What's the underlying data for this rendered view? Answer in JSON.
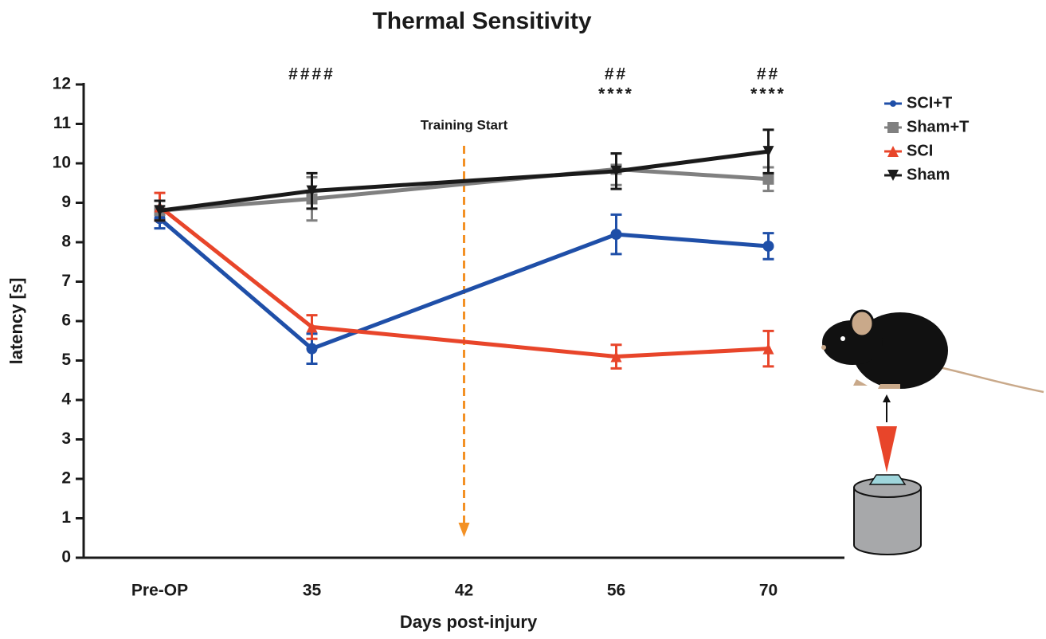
{
  "chart_data": {
    "type": "line",
    "title": "Thermal Sensitivity",
    "x_label": "Days post-injury",
    "y_label": "latency [s]",
    "categories": [
      "Pre-OP",
      "35",
      "42",
      "56",
      "70"
    ],
    "ylim": [
      0,
      12
    ],
    "yticks": [
      0,
      1,
      2,
      3,
      4,
      5,
      6,
      7,
      8,
      9,
      10,
      11,
      12
    ],
    "legend": "top-right",
    "series": [
      {
        "name": "SCI+T",
        "color": "#1f4fa8",
        "marker": "circle",
        "x": [
          "Pre-OP",
          "35",
          "56",
          "70"
        ],
        "values": [
          8.6,
          5.3,
          8.2,
          7.9
        ],
        "error": [
          0.25,
          0.38,
          0.5,
          0.33
        ]
      },
      {
        "name": "Sham+T",
        "color": "#808080",
        "marker": "square",
        "x": [
          "Pre-OP",
          "35",
          "56",
          "70"
        ],
        "values": [
          8.8,
          9.1,
          9.85,
          9.6
        ],
        "error": [
          0.25,
          0.55,
          0.4,
          0.3
        ]
      },
      {
        "name": "SCI",
        "color": "#e8452a",
        "marker": "triangle-up",
        "x": [
          "Pre-OP",
          "35",
          "56",
          "70"
        ],
        "values": [
          8.9,
          5.85,
          5.1,
          5.3
        ],
        "error": [
          0.35,
          0.3,
          0.3,
          0.45
        ]
      },
      {
        "name": "Sham",
        "color": "#1a1a1a",
        "marker": "triangle-down",
        "x": [
          "Pre-OP",
          "35",
          "56",
          "70"
        ],
        "values": [
          8.8,
          9.3,
          9.8,
          10.3
        ],
        "error": [
          0.25,
          0.45,
          0.45,
          0.55
        ]
      }
    ],
    "annotations": [
      {
        "text": "####",
        "x": "35"
      },
      {
        "text": "##",
        "x": "56"
      },
      {
        "text": "****",
        "x": "56"
      },
      {
        "text": "##",
        "x": "70"
      },
      {
        "text": "****",
        "x": "70"
      }
    ],
    "marker_line": {
      "text": "Training Start",
      "x": "42",
      "color": "#f39125"
    }
  }
}
